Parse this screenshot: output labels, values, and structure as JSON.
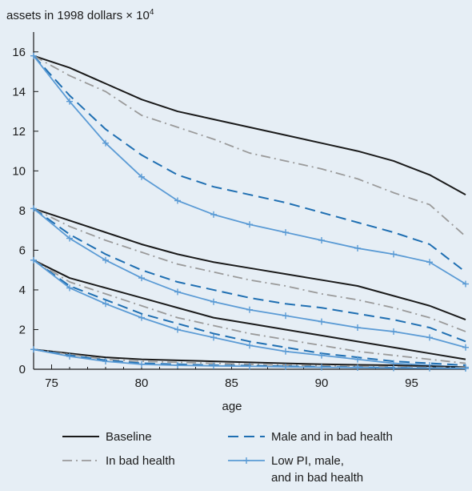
{
  "chart_data": {
    "type": "line",
    "ylabel_prefix": "assets in 1998 dollars × 10",
    "ylabel_exp": "4",
    "xlabel": "age",
    "xlim": [
      74,
      98
    ],
    "ylim": [
      0,
      17
    ],
    "xticks": [
      75,
      80,
      85,
      90,
      95
    ],
    "yticks": [
      0,
      2,
      4,
      6,
      8,
      10,
      12,
      14,
      16
    ],
    "grid": false,
    "legend_position": "bottom",
    "colors": {
      "background": "#e6eef5",
      "baseline": "#1a1a1a",
      "bad_health": "#9a9a9a",
      "male_bad_health": "#1f6fb2",
      "lowpi_male_bad_health": "#5b9bd5"
    },
    "legend": [
      {
        "key": "baseline",
        "label": "Baseline"
      },
      {
        "key": "male_bad_health",
        "label": "Male and in bad health"
      },
      {
        "key": "bad_health",
        "label": "In bad health"
      },
      {
        "key": "lowpi_male_bad_health",
        "label_lines": [
          "Low PI, male,",
          "and in bad health"
        ]
      }
    ],
    "x": [
      74,
      76,
      78,
      80,
      82,
      84,
      86,
      88,
      90,
      92,
      94,
      96,
      98
    ],
    "series": [
      {
        "key": "baseline",
        "group": 1,
        "values": [
          15.8,
          15.2,
          14.4,
          13.6,
          13.0,
          12.6,
          12.2,
          11.8,
          11.4,
          11.0,
          10.5,
          9.8,
          8.8
        ]
      },
      {
        "key": "bad_health",
        "group": 1,
        "values": [
          15.8,
          14.8,
          14.0,
          12.8,
          12.2,
          11.6,
          10.9,
          10.5,
          10.1,
          9.6,
          8.9,
          8.3,
          6.7
        ]
      },
      {
        "key": "male_bad_health",
        "group": 1,
        "values": [
          15.8,
          13.8,
          12.1,
          10.8,
          9.8,
          9.2,
          8.8,
          8.4,
          7.9,
          7.4,
          6.9,
          6.3,
          4.9
        ]
      },
      {
        "key": "lowpi_male_bad_health",
        "group": 1,
        "values": [
          15.8,
          13.5,
          11.4,
          9.7,
          8.5,
          7.8,
          7.3,
          6.9,
          6.5,
          6.1,
          5.8,
          5.4,
          4.3
        ]
      },
      {
        "key": "baseline",
        "group": 2,
        "values": [
          8.1,
          7.5,
          6.9,
          6.3,
          5.8,
          5.4,
          5.1,
          4.8,
          4.5,
          4.2,
          3.7,
          3.2,
          2.5
        ]
      },
      {
        "key": "bad_health",
        "group": 2,
        "values": [
          8.1,
          7.2,
          6.5,
          5.9,
          5.3,
          4.9,
          4.5,
          4.2,
          3.8,
          3.5,
          3.1,
          2.6,
          1.9
        ]
      },
      {
        "key": "male_bad_health",
        "group": 2,
        "values": [
          8.1,
          6.8,
          5.8,
          5.0,
          4.4,
          4.0,
          3.6,
          3.3,
          3.1,
          2.8,
          2.5,
          2.1,
          1.4
        ]
      },
      {
        "key": "lowpi_male_bad_health",
        "group": 2,
        "values": [
          8.1,
          6.6,
          5.5,
          4.6,
          3.9,
          3.4,
          3.0,
          2.7,
          2.4,
          2.1,
          1.9,
          1.6,
          1.1
        ]
      },
      {
        "key": "baseline",
        "group": 3,
        "values": [
          5.5,
          4.6,
          4.1,
          3.6,
          3.1,
          2.6,
          2.3,
          2.0,
          1.7,
          1.4,
          1.1,
          0.8,
          0.5
        ]
      },
      {
        "key": "bad_health",
        "group": 3,
        "values": [
          5.5,
          4.4,
          3.8,
          3.2,
          2.6,
          2.2,
          1.8,
          1.5,
          1.2,
          0.9,
          0.7,
          0.5,
          0.3
        ]
      },
      {
        "key": "male_bad_health",
        "group": 3,
        "values": [
          5.5,
          4.2,
          3.5,
          2.8,
          2.3,
          1.8,
          1.4,
          1.1,
          0.8,
          0.6,
          0.4,
          0.3,
          0.2
        ]
      },
      {
        "key": "lowpi_male_bad_health",
        "group": 3,
        "values": [
          5.5,
          4.1,
          3.3,
          2.6,
          2.0,
          1.6,
          1.2,
          0.9,
          0.7,
          0.5,
          0.3,
          0.2,
          0.1
        ]
      },
      {
        "key": "baseline",
        "group": 4,
        "values": [
          1.0,
          0.8,
          0.6,
          0.5,
          0.45,
          0.4,
          0.35,
          0.3,
          0.25,
          0.22,
          0.2,
          0.15,
          0.1
        ]
      },
      {
        "key": "bad_health",
        "group": 4,
        "values": [
          1.0,
          0.75,
          0.5,
          0.4,
          0.35,
          0.3,
          0.25,
          0.2,
          0.18,
          0.15,
          0.12,
          0.1,
          0.08
        ]
      },
      {
        "key": "male_bad_health",
        "group": 4,
        "values": [
          1.0,
          0.7,
          0.45,
          0.3,
          0.25,
          0.2,
          0.18,
          0.15,
          0.12,
          0.1,
          0.08,
          0.06,
          0.05
        ]
      },
      {
        "key": "lowpi_male_bad_health",
        "group": 4,
        "values": [
          1.0,
          0.65,
          0.4,
          0.25,
          0.2,
          0.17,
          0.15,
          0.12,
          0.1,
          0.08,
          0.06,
          0.05,
          0.04
        ]
      }
    ]
  }
}
